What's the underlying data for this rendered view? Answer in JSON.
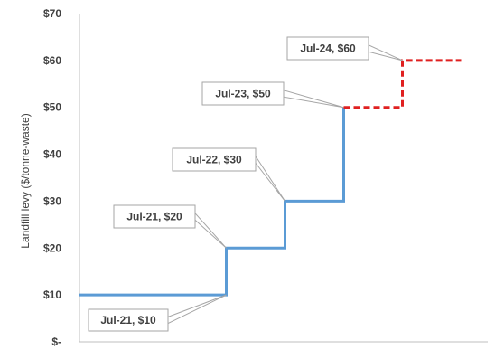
{
  "chart_data": {
    "type": "line",
    "title": "",
    "xlabel": "",
    "ylabel": "Landfill levy ($/tonne-waste)",
    "ylim": [
      0,
      70
    ],
    "yticks": [
      {
        "value": 0,
        "label": "$-"
      },
      {
        "value": 10,
        "label": "$10"
      },
      {
        "value": 20,
        "label": "$20"
      },
      {
        "value": 30,
        "label": "$30"
      },
      {
        "value": 40,
        "label": "$40"
      },
      {
        "value": 50,
        "label": "$50"
      },
      {
        "value": 60,
        "label": "$60"
      },
      {
        "value": 70,
        "label": "$70"
      }
    ],
    "grid": false,
    "step_series": [
      {
        "style": "solid",
        "color": "#5B9BD5",
        "points": [
          {
            "x": 0,
            "y": 10
          },
          {
            "x": 2.5,
            "y": 10
          },
          {
            "x": 2.5,
            "y": 20
          },
          {
            "x": 3.5,
            "y": 20
          },
          {
            "x": 3.5,
            "y": 30
          },
          {
            "x": 4.5,
            "y": 30
          },
          {
            "x": 4.5,
            "y": 50
          }
        ]
      },
      {
        "style": "dashed",
        "color": "#E02020",
        "points": [
          {
            "x": 4.5,
            "y": 50
          },
          {
            "x": 5.5,
            "y": 50
          },
          {
            "x": 5.5,
            "y": 60
          },
          {
            "x": 6.5,
            "y": 60
          }
        ]
      }
    ],
    "xlim": [
      0,
      6.7
    ],
    "annotations": [
      {
        "text": "Jul-21, $10",
        "x": 2.5,
        "y": 10
      },
      {
        "text": "Jul-21, $20",
        "x": 2.5,
        "y": 20
      },
      {
        "text": "Jul-22, $30",
        "x": 3.5,
        "y": 30
      },
      {
        "text": "Jul-23, $50",
        "x": 4.5,
        "y": 50
      },
      {
        "text": "Jul-24, $60",
        "x": 5.5,
        "y": 60
      }
    ]
  }
}
